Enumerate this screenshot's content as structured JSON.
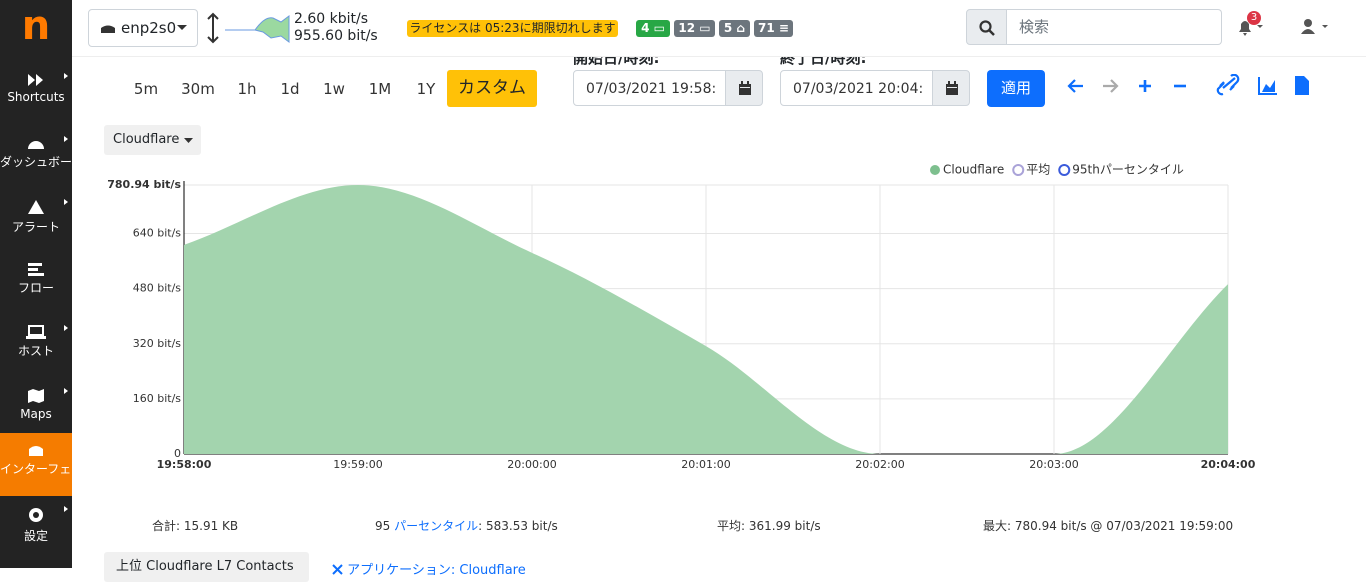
{
  "sidebar": {
    "logo": "n",
    "items": [
      "Shortcuts",
      "ダッシュボード",
      "アラート",
      "フロー",
      "ホスト",
      "Maps",
      "インターフェイス",
      "設定"
    ]
  },
  "topbar": {
    "interface": "enp2s0",
    "upload": "2.60 kbit/s",
    "download": "955.60 bit/s",
    "license": "ライセンスは 05:23に期限切れします",
    "badges": [
      4,
      12,
      5,
      71
    ],
    "search_placeholder": "検索",
    "notifications": 3
  },
  "toolbar": {
    "timespans": [
      "5m",
      "30m",
      "1h",
      "1d",
      "1w",
      "1M",
      "1Y",
      "カスタム"
    ],
    "start_label": "開始日/時刻:",
    "start_value": "07/03/2021 19:58:",
    "end_label": "終了日/時刻:",
    "end_value": "07/03/2021 20:04:",
    "apply": "適用"
  },
  "selector": "Cloudflare",
  "chart_data": {
    "type": "area",
    "x": [
      "19:58:00",
      "19:59:00",
      "20:00:00",
      "20:01:00",
      "20:02:00",
      "20:03:00",
      "20:04:00"
    ],
    "series": [
      {
        "name": "Cloudflare",
        "color": "#a3d4ae",
        "legend_color": "#7dbf8e",
        "values": [
          607,
          780.94,
          584,
          313,
          0,
          0,
          493
        ]
      }
    ],
    "markers": [
      {
        "name": "平均",
        "color": "#aaa3d8"
      },
      {
        "name": "95thパーセンタイル",
        "color": "#3b5bdb"
      }
    ],
    "ylim": [
      0,
      780.94
    ],
    "yticks": [
      0,
      {
        "value": 160,
        "label": "160 bit/s"
      },
      {
        "value": 320,
        "label": "320 bit/s"
      },
      {
        "value": 480,
        "label": "480 bit/s"
      },
      {
        "value": 640,
        "label": "640 bit/s"
      },
      {
        "value": 780.94,
        "label": "780.94 bit/s"
      }
    ],
    "grid": true
  },
  "stats": {
    "total": "合計: 15.91 KB",
    "p95_prefix": "95",
    "p95_link": "パーセンタイル",
    "p95_value": ": 583.53 bit/s",
    "avg": "平均: 361.99 bit/s",
    "max": "最大: 780.94 bit/s @ 07/03/2021 19:59:00"
  },
  "bottom": {
    "contacts": "上位 Cloudflare L7 Contacts",
    "app_filter": "アプリケーション: Cloudflare"
  }
}
